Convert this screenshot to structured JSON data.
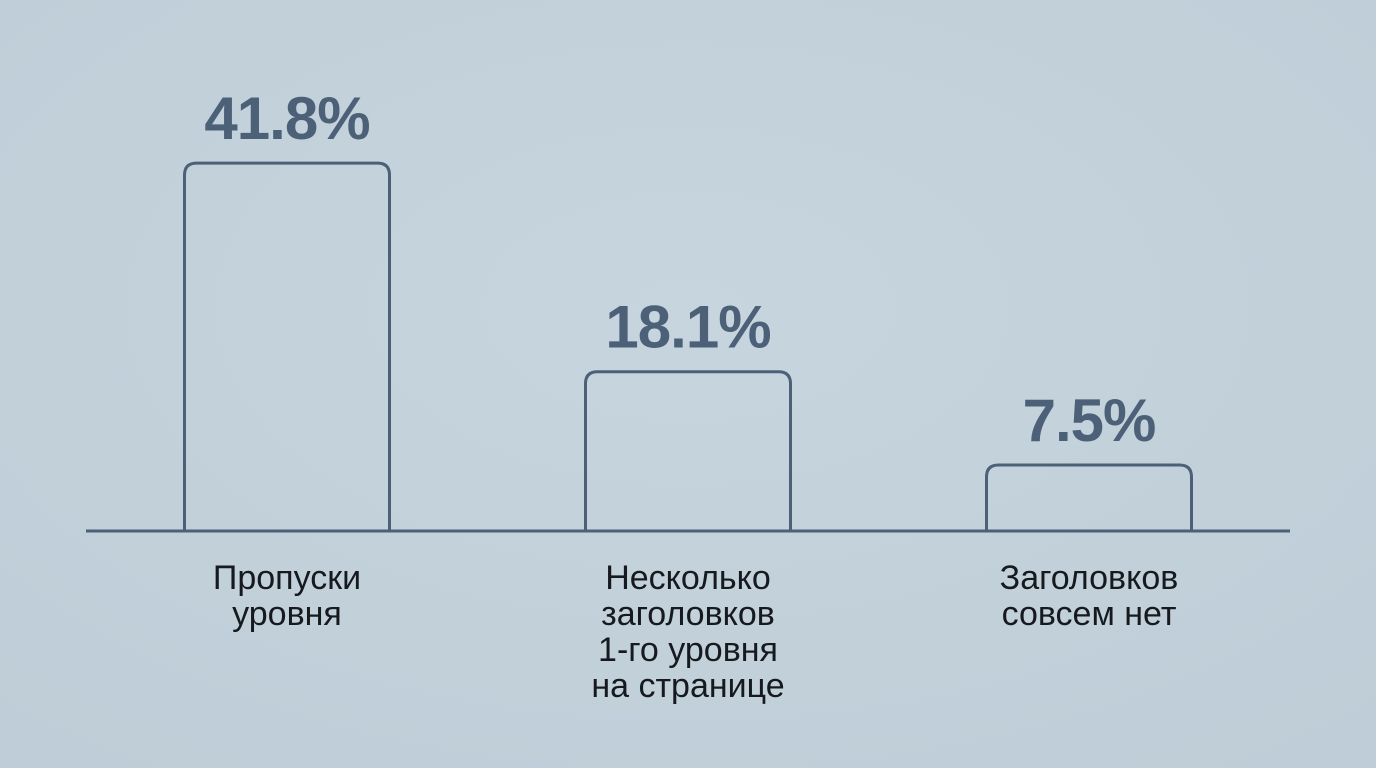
{
  "chart_data": {
    "type": "bar",
    "categories": [
      "Пропуски\nуровня",
      "Несколько\nзаголовков\n1-го уровня\nна странице",
      "Заголовков\nсовсем нет"
    ],
    "values": [
      41.8,
      18.1,
      7.5
    ],
    "value_labels": [
      "41.8%",
      "18.1%",
      "7.5%"
    ],
    "color": "#4c6078"
  }
}
